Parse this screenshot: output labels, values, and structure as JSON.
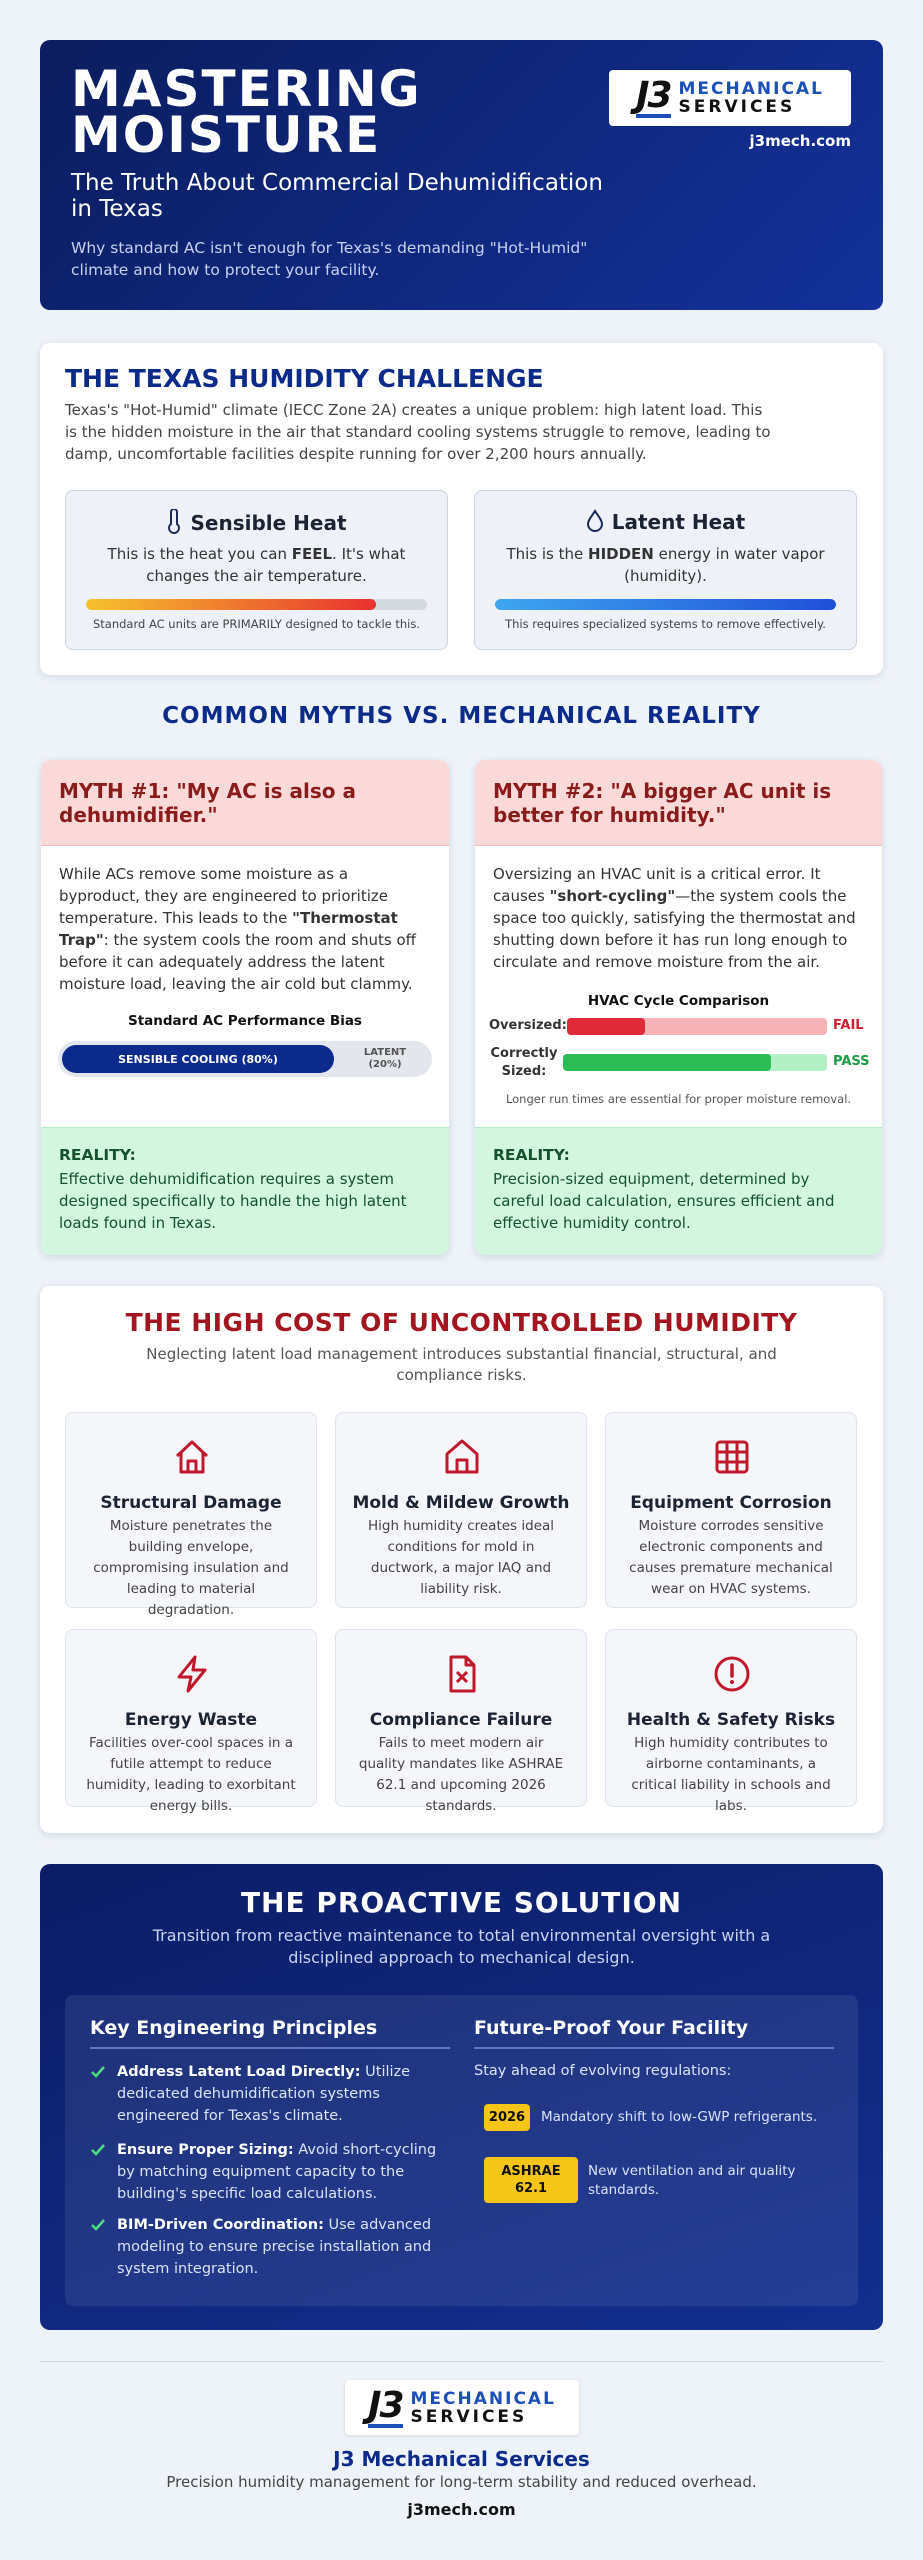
{
  "header": {
    "title": "MASTERING MOISTURE",
    "subtitle": "The Truth About Commercial Dehumidification in Texas",
    "description": "Why standard AC isn't enough for Texas's demanding \"Hot-Humid\" climate and how to protect your facility.",
    "logo": {
      "mark": "J3",
      "line1": "MECHANICAL",
      "line2": "SERVICES"
    },
    "website": "j3mech.com"
  },
  "challenge": {
    "title": "THE TEXAS HUMIDITY CHALLENGE",
    "intro": "Texas's \"Hot-Humid\" climate (IECC Zone 2A) creates a unique problem: high latent load. This is the hidden moisture in the air that standard cooling systems struggle to remove, leading to damp, uncomfortable facilities despite running for over 2,200 hours annually.",
    "cards": [
      {
        "title": "Sensible Heat",
        "before": "This is the heat you can ",
        "strong": "FEEL",
        "after": ". It's what changes the air temperature.",
        "note": "Standard AC units are PRIMARILY designed to tackle this."
      },
      {
        "title": "Latent Heat",
        "before": "This is the ",
        "strong": "HIDDEN",
        "after": " energy in water vapor (humidity).",
        "note": "This requires specialized systems to remove effectively."
      }
    ]
  },
  "myths": {
    "title": "COMMON MYTHS VS. MECHANICAL REALITY",
    "items": [
      {
        "title": "MYTH #1: \"My AC is also a dehumidifier.\"",
        "before": "While ACs remove some moisture as a byproduct, they are engineered to prioritize temperature. This leads to the ",
        "strong": "\"Thermostat Trap\"",
        "after": ": the system cools the room and shuts off before it can adequately address the latent moisture load, leaving the air cold but clammy.",
        "chart": {
          "title": "Standard AC Performance Bias",
          "main": "SENSIBLE COOLING (80%)",
          "rest": "LATENT (20%)"
        },
        "reality_label": "REALITY:",
        "reality": "Effective dehumidification requires a system designed specifically to handle the high latent loads found in Texas."
      },
      {
        "title": "MYTH #2: \"A bigger AC unit is better for humidity.\"",
        "before": "Oversizing an HVAC unit is a critical error. It causes ",
        "strong": "\"short-cycling\"",
        "after": "—the system cools the space too quickly, satisfying the thermostat and shutting down before it has run long enough to circulate and remove moisture from the air.",
        "chart": {
          "title": "HVAC Cycle Comparison",
          "rows": [
            {
              "label": "Oversized:",
              "result": "FAIL"
            },
            {
              "label": "Correctly Sized:",
              "result": "PASS"
            }
          ],
          "note": "Longer run times are essential for proper moisture removal."
        },
        "reality_label": "REALITY:",
        "reality": "Precision-sized equipment, determined by careful load calculation, ensures efficient and effective humidity control."
      }
    ]
  },
  "costs": {
    "title": "THE HIGH COST OF UNCONTROLLED HUMIDITY",
    "intro": "Neglecting latent load management introduces substantial financial, structural, and compliance risks.",
    "items": [
      {
        "title": "Structural Damage",
        "text": "Moisture penetrates the building envelope, compromising insulation and leading to material degradation."
      },
      {
        "title": "Mold & Mildew Growth",
        "text": "High humidity creates ideal conditions for mold in ductwork, a major IAQ and liability risk."
      },
      {
        "title": "Equipment Corrosion",
        "text": "Moisture corrodes sensitive electronic components and causes premature mechanical wear on HVAC systems."
      },
      {
        "title": "Energy Waste",
        "text": "Facilities over-cool spaces in a futile attempt to reduce humidity, leading to exorbitant energy bills."
      },
      {
        "title": "Compliance Failure",
        "text": "Fails to meet modern air quality mandates like ASHRAE 62.1 and upcoming 2026 standards."
      },
      {
        "title": "Health & Safety Risks",
        "text": "High humidity contributes to airborne contaminants, a critical liability in schools and labs."
      }
    ]
  },
  "solution": {
    "title": "THE PROACTIVE SOLUTION",
    "intro": "Transition from reactive maintenance to total environmental oversight with a disciplined approach to mechanical design.",
    "principles_title": "Key Engineering Principles",
    "principles": [
      {
        "label": "Address Latent Load Directly:",
        "text": " Utilize dedicated dehumidification systems engineered for Texas's climate."
      },
      {
        "label": "Ensure Proper Sizing:",
        "text": " Avoid short-cycling by matching equipment capacity to the building's specific load calculations."
      },
      {
        "label": "BIM-Driven Coordination:",
        "text": " Use advanced modeling to ensure precise installation and system integration."
      }
    ],
    "future_title": "Future-Proof Your Facility",
    "future_intro": "Stay ahead of evolving regulations:",
    "future": [
      {
        "badge": "2026",
        "text": "Mandatory shift to low-GWP refrigerants."
      },
      {
        "badge": "ASHRAE 62.1",
        "text": "New ventilation and air quality standards."
      }
    ]
  },
  "footer": {
    "logo": {
      "mark": "J3",
      "line1": "MECHANICAL",
      "line2": "SERVICES"
    },
    "name": "J3 Mechanical Services",
    "tagline": "Precision humidity management for long-term stability and reduced overhead.",
    "website": "j3mech.com"
  }
}
